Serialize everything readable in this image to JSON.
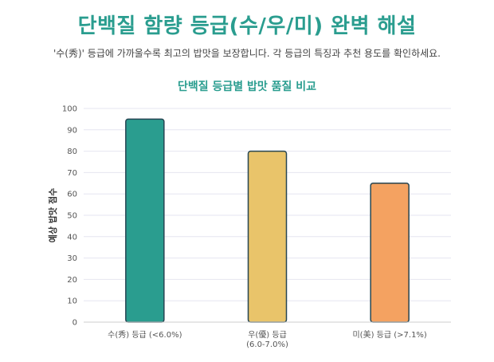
{
  "header": {
    "title": "단백질 함량 등급(수/우/미) 완벽 해설",
    "subtitle": "'수(秀)' 등급에 가까울수록 최고의 밥맛을 보장합니다. 각 등급의 특징과 추천 용도를 확인하세요."
  },
  "colors": {
    "title": "#2a9d8f",
    "bar_su": "#2a9d8f",
    "bar_u": "#e9c46a",
    "bar_mi": "#f4a261",
    "bar_stroke": "#264653",
    "grid": "#e6e6f0",
    "axis_text": "#555555"
  },
  "chart_data": {
    "type": "bar",
    "title": "단백질 등급별 밥맛 품질 비교",
    "xlabel": "",
    "ylabel": "예상 밥맛 점수",
    "ylim": [
      0,
      100
    ],
    "yticks": [
      0,
      10,
      20,
      30,
      40,
      50,
      60,
      70,
      80,
      90,
      100
    ],
    "grid": true,
    "categories": [
      [
        "수(秀) 등급 (<6.0%)"
      ],
      [
        "우(優) 등급",
        "(6.0-7.0%)"
      ],
      [
        "미(美) 등급 (>7.1%)"
      ]
    ],
    "values": [
      95,
      80,
      65
    ]
  }
}
